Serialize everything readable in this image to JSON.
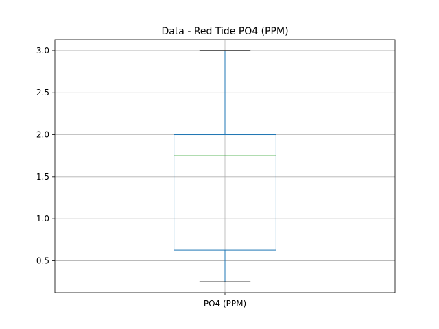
{
  "chart_data": {
    "type": "box",
    "title": "Data - Red Tide PO4 (PPM)",
    "xlabel": "",
    "ylabel": "",
    "categories": [
      "PO4 (PPM)"
    ],
    "boxes": [
      {
        "category": "PO4 (PPM)",
        "whisker_low": 0.25,
        "q1": 0.625,
        "median": 1.75,
        "q3": 2.0,
        "whisker_high": 3.0
      }
    ],
    "ylim": [
      0.12,
      3.13
    ],
    "yticks": [
      0.5,
      1.0,
      1.5,
      2.0,
      2.5,
      3.0
    ],
    "ytick_labels": [
      "0.5",
      "1.0",
      "1.5",
      "2.0",
      "2.5",
      "3.0"
    ],
    "grid": true,
    "colors": {
      "box": "#1f77b4",
      "whisker": "#1f77b4",
      "cap": "#000000",
      "median": "#2ca02c",
      "grid": "#b0b0b0",
      "frame": "#000000"
    }
  }
}
